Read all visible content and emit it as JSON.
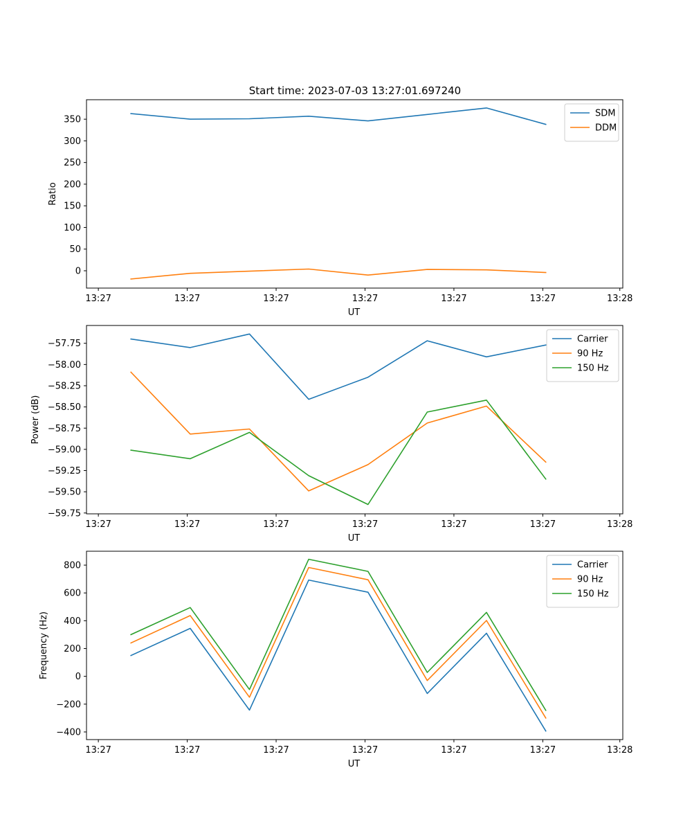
{
  "figure_title": "Start time: 2023-07-03 13:27:01.697240",
  "colors": {
    "blue": "#1f77b4",
    "orange": "#ff7f0e",
    "green": "#2ca02c"
  },
  "chart_data": [
    {
      "type": "line",
      "title": "Start time: 2023-07-03 13:27:01.697240",
      "xlabel": "UT",
      "ylabel": "Ratio",
      "x": [
        1,
        2,
        3,
        4,
        5,
        6,
        7,
        8
      ],
      "xlim": [
        0.25,
        9.3
      ],
      "xticks": [
        0.45,
        1.95,
        3.45,
        4.95,
        6.45,
        7.95,
        9.25
      ],
      "xticklabels": [
        "13:27",
        "13:27",
        "13:27",
        "13:27",
        "13:27",
        "13:27",
        "13:28"
      ],
      "ylim": [
        -40,
        395
      ],
      "yticks": [
        0,
        50,
        100,
        150,
        200,
        250,
        300,
        350
      ],
      "yticklabels": [
        "0",
        "50",
        "100",
        "150",
        "200",
        "250",
        "300",
        "350"
      ],
      "legend_loc": "upper right",
      "series": [
        {
          "name": "SDM",
          "color": "#1f77b4",
          "values": [
            363,
            350,
            351,
            357,
            346,
            361,
            376,
            338
          ]
        },
        {
          "name": "DDM",
          "color": "#ff7f0e",
          "values": [
            -19,
            -6,
            -1,
            4,
            -10,
            3,
            2,
            -4
          ]
        }
      ]
    },
    {
      "type": "line",
      "title": "",
      "xlabel": "UT",
      "ylabel": "Power (dB)",
      "x": [
        1,
        2,
        3,
        4,
        5,
        6,
        7,
        8
      ],
      "xlim": [
        0.25,
        9.3
      ],
      "xticks": [
        0.45,
        1.95,
        3.45,
        4.95,
        6.45,
        7.95,
        9.25
      ],
      "xticklabels": [
        "13:27",
        "13:27",
        "13:27",
        "13:27",
        "13:27",
        "13:27",
        "13:28"
      ],
      "ylim": [
        -59.76,
        -57.54
      ],
      "yticks": [
        -59.75,
        -59.5,
        -59.25,
        -59.0,
        -58.75,
        -58.5,
        -58.25,
        -58.0,
        -57.75
      ],
      "yticklabels": [
        "−59.75",
        "−59.50",
        "−59.25",
        "−59.00",
        "−58.75",
        "−58.50",
        "−58.25",
        "−58.00",
        "−57.75"
      ],
      "legend_loc": "upper right",
      "series": [
        {
          "name": "Carrier",
          "color": "#1f77b4",
          "values": [
            -57.7,
            -57.8,
            -57.64,
            -58.41,
            -58.15,
            -57.72,
            -57.91,
            -57.77
          ]
        },
        {
          "name": "90 Hz",
          "color": "#ff7f0e",
          "values": [
            -58.09,
            -58.82,
            -58.76,
            -59.49,
            -59.18,
            -58.69,
            -58.49,
            -59.15
          ]
        },
        {
          "name": "150 Hz",
          "color": "#2ca02c",
          "values": [
            -59.01,
            -59.11,
            -58.8,
            -59.31,
            -59.65,
            -58.56,
            -58.42,
            -59.35
          ]
        }
      ]
    },
    {
      "type": "line",
      "title": "",
      "xlabel": "UT",
      "ylabel": "Frequency (Hz)",
      "x": [
        1,
        2,
        3,
        4,
        5,
        6,
        7,
        8
      ],
      "xlim": [
        0.25,
        9.3
      ],
      "xticks": [
        0.45,
        1.95,
        3.45,
        4.95,
        6.45,
        7.95,
        9.25
      ],
      "xticklabels": [
        "13:27",
        "13:27",
        "13:27",
        "13:27",
        "13:27",
        "13:27",
        "13:28"
      ],
      "ylim": [
        -455,
        900
      ],
      "yticks": [
        -400,
        -200,
        0,
        200,
        400,
        600,
        800
      ],
      "yticklabels": [
        "−400",
        "−200",
        "0",
        "200",
        "400",
        "600",
        "800"
      ],
      "legend_loc": "upper right",
      "series": [
        {
          "name": "Carrier",
          "color": "#1f77b4",
          "values": [
            150,
            345,
            -243,
            693,
            605,
            -123,
            310,
            -393
          ]
        },
        {
          "name": "90 Hz",
          "color": "#ff7f0e",
          "values": [
            240,
            437,
            -150,
            783,
            695,
            -30,
            402,
            -300
          ]
        },
        {
          "name": "150 Hz",
          "color": "#2ca02c",
          "values": [
            300,
            495,
            -95,
            842,
            755,
            28,
            460,
            -245
          ]
        }
      ]
    }
  ]
}
